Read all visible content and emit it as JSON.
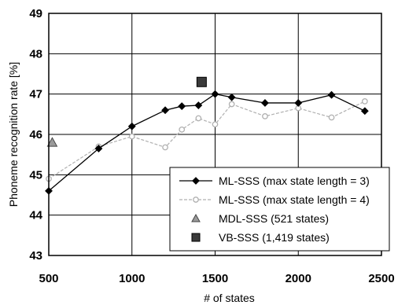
{
  "chart_data": {
    "type": "line",
    "xlabel": "# of states",
    "ylabel": "Phoneme recognition rate [%]",
    "xlim": [
      500,
      2500
    ],
    "ylim": [
      43,
      49
    ],
    "x_ticks": [
      500,
      1000,
      1500,
      2000,
      2500
    ],
    "y_ticks": [
      43,
      44,
      45,
      46,
      47,
      48,
      49
    ],
    "grid": true,
    "legend_position": "bottom-right",
    "series": [
      {
        "name": "ML-SSS (max state length = 3)",
        "style": "solid-black-diamond",
        "color": "#000000",
        "x": [
          500,
          800,
          1000,
          1200,
          1300,
          1400,
          1500,
          1600,
          1800,
          2000,
          2200,
          2400
        ],
        "y": [
          44.6,
          45.65,
          46.2,
          46.6,
          46.7,
          46.72,
          47.0,
          46.92,
          46.78,
          46.78,
          46.98,
          46.58
        ]
      },
      {
        "name": "ML-SSS (max state length = 4)",
        "style": "dashed-gray-circle",
        "color": "#b0b0b0",
        "x": [
          500,
          800,
          1000,
          1200,
          1300,
          1400,
          1500,
          1600,
          1800,
          2000,
          2200,
          2400
        ],
        "y": [
          44.9,
          45.7,
          45.95,
          45.68,
          46.12,
          46.4,
          46.25,
          46.75,
          46.45,
          46.65,
          46.42,
          46.82
        ]
      },
      {
        "name": "MDL-SSS (521 states)",
        "style": "triangle",
        "color": "#808080",
        "x": [
          521
        ],
        "y": [
          45.8
        ]
      },
      {
        "name": "VB-SSS (1,419 states)",
        "style": "square",
        "color": "#333333",
        "x": [
          1419
        ],
        "y": [
          47.3
        ]
      }
    ]
  }
}
